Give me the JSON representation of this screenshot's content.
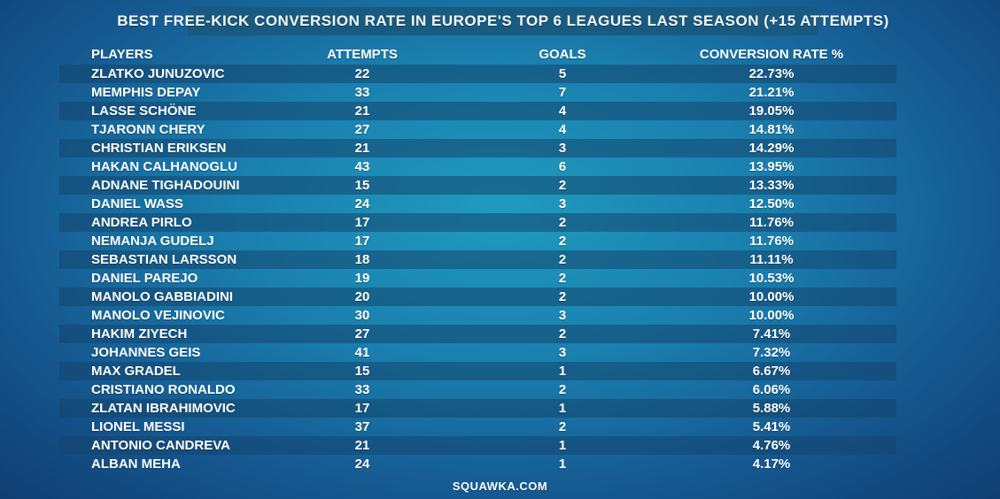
{
  "title": "BEST FREE-KICK CONVERSION RATE IN EUROPE'S TOP 6 LEAGUES LAST SEASON (+15 ATTEMPTS)",
  "columns": {
    "players": "PLAYERS",
    "attempts": "ATTEMPTS",
    "goals": "GOALS",
    "rate": "CONVERSION RATE %"
  },
  "footer": "SQUAWKA.COM",
  "colors": {
    "background_center": "#1f9bbd",
    "background_edge": "#103e72",
    "title_box": "#1a5a7f",
    "row_shade": "#14466e",
    "text": "#ffffff"
  },
  "chart_data": {
    "type": "table",
    "title": "BEST FREE-KICK CONVERSION RATE IN EUROPE'S TOP 6 LEAGUES LAST SEASON (+15 ATTEMPTS)",
    "columns": [
      "PLAYERS",
      "ATTEMPTS",
      "GOALS",
      "CONVERSION RATE %"
    ],
    "rows": [
      {
        "player": "ZLATKO JUNUZOVIC",
        "attempts": "22",
        "goals": "5",
        "rate": "22.73%"
      },
      {
        "player": "MEMPHIS DEPAY",
        "attempts": "33",
        "goals": "7",
        "rate": "21.21%"
      },
      {
        "player": "LASSE SCHÖNE",
        "attempts": "21",
        "goals": "4",
        "rate": "19.05%"
      },
      {
        "player": "TJARONN CHERY",
        "attempts": "27",
        "goals": "4",
        "rate": "14.81%"
      },
      {
        "player": "CHRISTIAN ERIKSEN",
        "attempts": "21",
        "goals": "3",
        "rate": "14.29%"
      },
      {
        "player": "HAKAN CALHANOGLU",
        "attempts": "43",
        "goals": "6",
        "rate": "13.95%"
      },
      {
        "player": "ADNANE TIGHADOUINI",
        "attempts": "15",
        "goals": "2",
        "rate": "13.33%"
      },
      {
        "player": "DANIEL WASS",
        "attempts": "24",
        "goals": "3",
        "rate": "12.50%"
      },
      {
        "player": "ANDREA PIRLO",
        "attempts": "17",
        "goals": "2",
        "rate": "11.76%"
      },
      {
        "player": "NEMANJA GUDELJ",
        "attempts": "17",
        "goals": "2",
        "rate": "11.76%"
      },
      {
        "player": "SEBASTIAN LARSSON",
        "attempts": "18",
        "goals": "2",
        "rate": "11.11%"
      },
      {
        "player": "DANIEL PAREJO",
        "attempts": "19",
        "goals": "2",
        "rate": "10.53%"
      },
      {
        "player": "MANOLO GABBIADINI",
        "attempts": "20",
        "goals": "2",
        "rate": "10.00%"
      },
      {
        "player": "MANOLO VEJINOVIC",
        "attempts": "30",
        "goals": "3",
        "rate": "10.00%"
      },
      {
        "player": "HAKIM ZIYECH",
        "attempts": "27",
        "goals": "2",
        "rate": "7.41%"
      },
      {
        "player": "JOHANNES GEIS",
        "attempts": "41",
        "goals": "3",
        "rate": "7.32%"
      },
      {
        "player": "MAX GRADEL",
        "attempts": "15",
        "goals": "1",
        "rate": "6.67%"
      },
      {
        "player": "CRISTIANO RONALDO",
        "attempts": "33",
        "goals": "2",
        "rate": "6.06%"
      },
      {
        "player": "ZLATAN IBRAHIMOVIC",
        "attempts": "17",
        "goals": "1",
        "rate": "5.88%"
      },
      {
        "player": "LIONEL MESSI",
        "attempts": "37",
        "goals": "2",
        "rate": "5.41%"
      },
      {
        "player": "ANTONIO CANDREVA",
        "attempts": "21",
        "goals": "1",
        "rate": "4.76%"
      },
      {
        "player": "ALBAN MEHA",
        "attempts": "24",
        "goals": "1",
        "rate": "4.17%"
      }
    ]
  }
}
